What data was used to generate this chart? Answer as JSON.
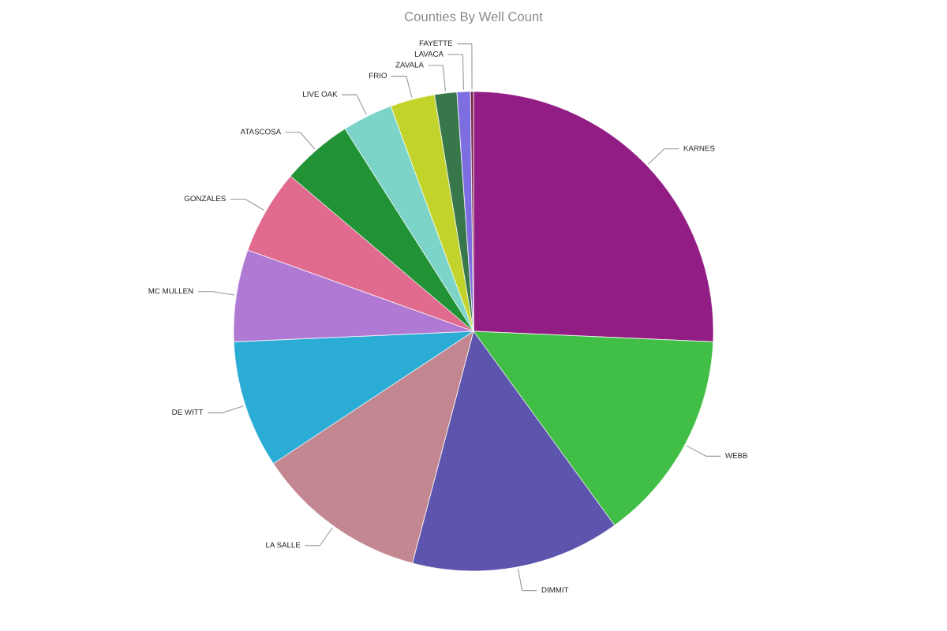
{
  "chart_data": {
    "type": "pie",
    "title": "Counties By Well Count",
    "categories": [
      "KARNES",
      "WEBB",
      "DIMMIT",
      "LA SALLE",
      "DE WITT",
      "MC MULLEN",
      "GONZALES",
      "ATASCOSA",
      "LIVE OAK",
      "FRIO",
      "ZAVALA",
      "LAVACA",
      "FAYETTE"
    ],
    "values": [
      25.7,
      14.3,
      14.1,
      11.6,
      8.6,
      6.2,
      5.7,
      4.8,
      3.4,
      3.0,
      1.5,
      0.9,
      0.2
    ],
    "colors": [
      "#921d84",
      "#41be45",
      "#5d55ad",
      "#c38791",
      "#2bacd5",
      "#b07ad4",
      "#e06b8e",
      "#229236",
      "#7bd4c7",
      "#c2d42c",
      "#37774a",
      "#7c6ee0",
      "#7a2a4a"
    ],
    "legend": false
  }
}
